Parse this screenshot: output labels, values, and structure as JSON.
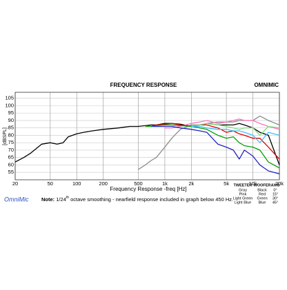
{
  "chart_data": {
    "type": "line",
    "title": "FREQUENCY RESPONSE",
    "logo": "OMNIMIC",
    "y_label": "[dBSPL]",
    "x_label": "Frequency Response -freq [Hz]",
    "brand": "OmniMic",
    "note": {
      "label": "Note:",
      "parts": [
        "1/24",
        "th",
        " octave smoothing - nearfield response included in graph below 450 Hz."
      ]
    },
    "legend_headers": [
      "TWEETER",
      "WOOFER",
      "AXIS"
    ],
    "axes": [
      "0°",
      "15°",
      "30°",
      "45°"
    ],
    "x_log": true,
    "grid": true,
    "xlim": [
      20,
      20000
    ],
    "ylim": [
      50,
      109
    ],
    "xticks": [
      20,
      50,
      100,
      200,
      500,
      {
        "value": 1000,
        "label": "1k"
      },
      {
        "value": 2000,
        "label": "2k"
      },
      {
        "value": 5000,
        "label": "5k"
      },
      {
        "value": 10000,
        "label": "10k"
      },
      {
        "value": 20000,
        "label": "20k"
      }
    ],
    "yticks": [
      55,
      60,
      65,
      70,
      75,
      80,
      85,
      90,
      95,
      100,
      105
    ],
    "x": [
      20,
      25,
      30,
      40,
      50,
      60,
      70,
      80,
      100,
      120,
      150,
      200,
      300,
      400,
      500,
      600,
      700,
      800,
      1000,
      1200,
      1500,
      2000,
      2500,
      3000,
      4000,
      5000,
      6000,
      7000,
      8000,
      10000,
      12000,
      15000,
      20000
    ],
    "series": [
      {
        "name": "Gray",
        "color": "#8a8a8a",
        "values": [
          null,
          null,
          null,
          null,
          null,
          null,
          null,
          null,
          null,
          null,
          null,
          null,
          null,
          null,
          57,
          60,
          63,
          65,
          72,
          78,
          84,
          87,
          87,
          88,
          89,
          89,
          89,
          90,
          90,
          90,
          93,
          90,
          87
        ]
      },
      {
        "name": "Black",
        "color": "#000000",
        "values": [
          62,
          65,
          68,
          74,
          75,
          74,
          75,
          79,
          81,
          82,
          83,
          84,
          85,
          86,
          86,
          86.5,
          87,
          87,
          88,
          88,
          87.5,
          86,
          87,
          88,
          87,
          87,
          87,
          88,
          87,
          85,
          82,
          80,
          60
        ]
      },
      {
        "name": "Pink",
        "color": "#ff70b8",
        "values": [
          null,
          null,
          null,
          null,
          null,
          null,
          null,
          null,
          null,
          null,
          null,
          null,
          null,
          null,
          null,
          null,
          null,
          null,
          85,
          85,
          86,
          88,
          89,
          90,
          88,
          89,
          90,
          91,
          90,
          90,
          88,
          86,
          84
        ]
      },
      {
        "name": "Red",
        "color": "#e00000",
        "values": [
          null,
          null,
          null,
          null,
          null,
          null,
          null,
          null,
          null,
          null,
          null,
          null,
          null,
          null,
          null,
          86.5,
          86,
          87,
          87.5,
          88,
          87,
          86,
          87,
          87,
          85,
          82,
          83,
          81,
          80,
          78,
          78,
          72,
          64
        ]
      },
      {
        "name": "Light Green",
        "color": "#7fdc7f",
        "values": [
          null,
          null,
          null,
          null,
          null,
          null,
          null,
          null,
          null,
          null,
          null,
          null,
          null,
          null,
          null,
          null,
          null,
          null,
          null,
          null,
          null,
          86,
          87,
          88,
          87,
          86,
          85,
          84,
          85,
          85,
          80,
          86,
          85
        ]
      },
      {
        "name": "Green",
        "color": "#00a000",
        "values": [
          null,
          null,
          null,
          null,
          null,
          null,
          null,
          null,
          null,
          null,
          null,
          null,
          null,
          null,
          null,
          86,
          86,
          86.5,
          87,
          87,
          86.5,
          86,
          85,
          84,
          80,
          78,
          79,
          75,
          73,
          72,
          70,
          62,
          58
        ]
      },
      {
        "name": "Light Blue",
        "color": "#40c0ff",
        "values": [
          null,
          null,
          null,
          null,
          null,
          null,
          null,
          null,
          null,
          null,
          null,
          null,
          null,
          null,
          null,
          null,
          null,
          null,
          null,
          null,
          null,
          86,
          86,
          85,
          84,
          84,
          83,
          83,
          82,
          80,
          75,
          82,
          80
        ]
      },
      {
        "name": "Blue",
        "color": "#2020c0",
        "values": [
          null,
          null,
          null,
          null,
          null,
          null,
          null,
          null,
          null,
          null,
          null,
          null,
          null,
          null,
          null,
          null,
          86,
          86,
          86,
          86,
          85,
          84,
          83,
          82,
          74,
          72,
          70,
          64,
          70,
          66,
          60,
          56,
          54
        ]
      }
    ]
  }
}
